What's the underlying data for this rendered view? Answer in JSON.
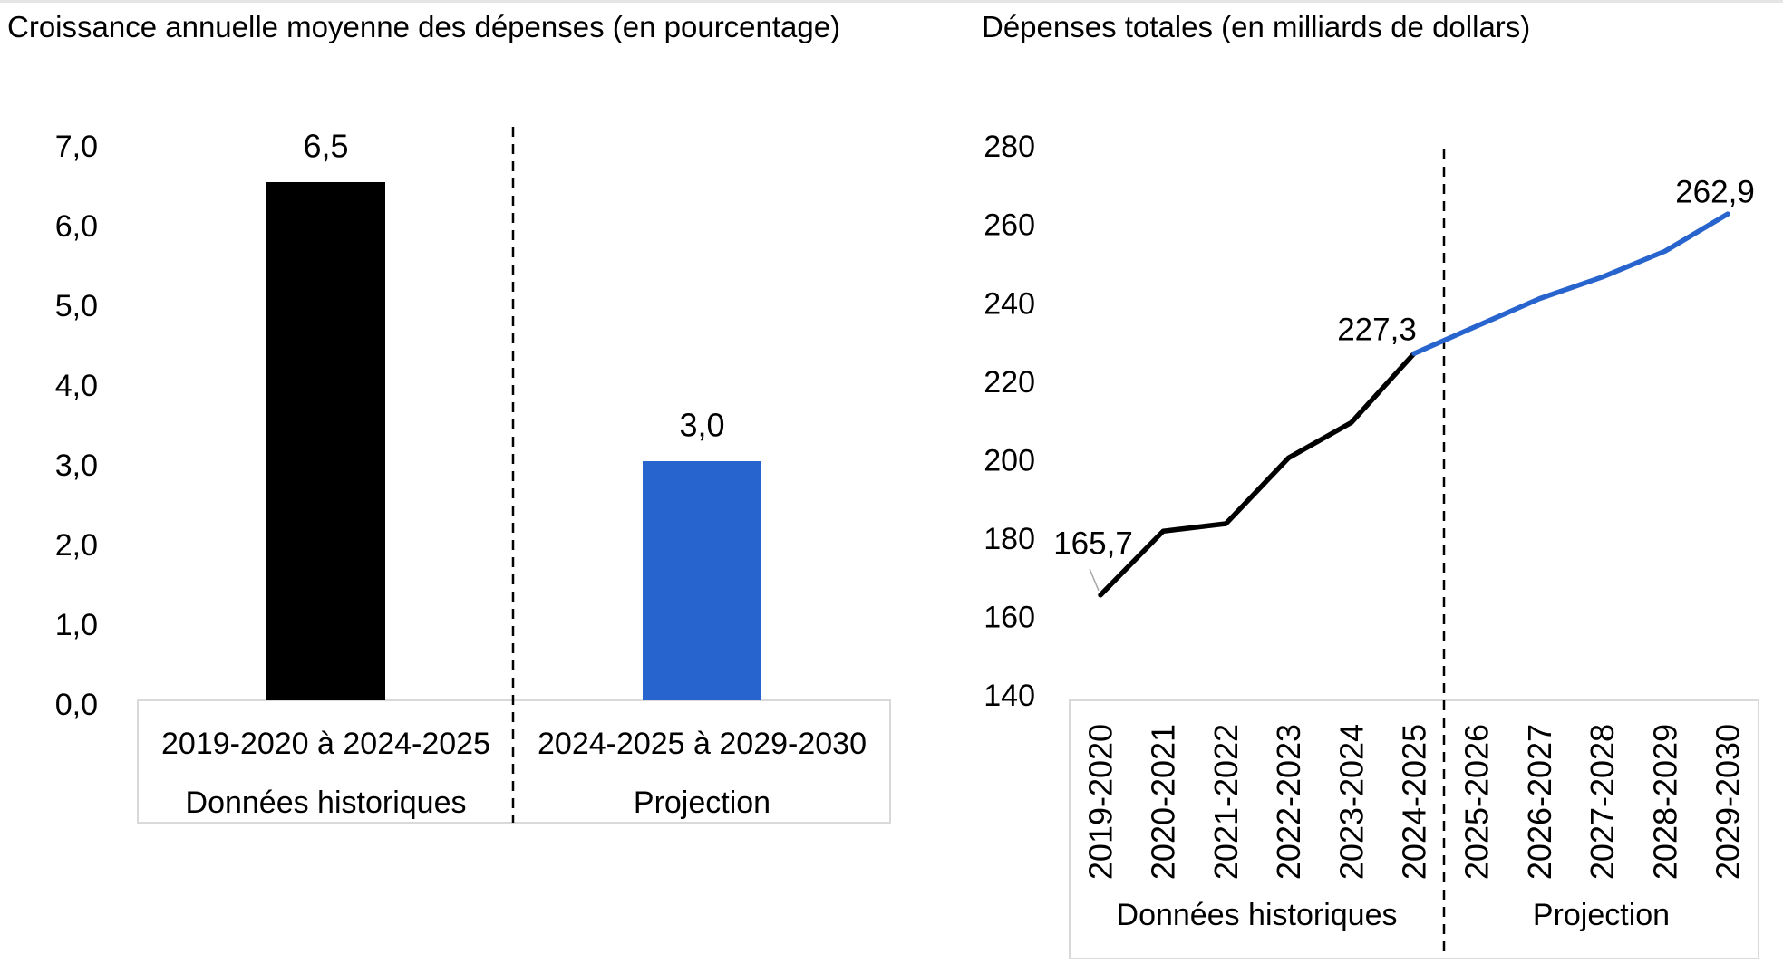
{
  "page": {
    "background": "#ffffff",
    "top_edge_color": "#e5e5e5"
  },
  "colors": {
    "historical": "#000000",
    "projection": "#2764cd",
    "box_border": "#d9d9d9",
    "leader_line": "#a6a6a6",
    "separator": "#000000",
    "text": "#000000"
  },
  "chart_data": [
    {
      "id": "average-growth-bar-chart",
      "type": "bar",
      "title": "Croissance annuelle moyenne des dépenses (en pourcentage)",
      "categories": [
        "2019-2020 à 2024-2025",
        "2024-2025 à 2029-2030"
      ],
      "group_labels": [
        "Données historiques",
        "Projection"
      ],
      "values": [
        6.5,
        3.0
      ],
      "value_labels": [
        "6,5",
        "3,0"
      ],
      "bar_colors": [
        "#000000",
        "#2764cd"
      ],
      "ylim": [
        0,
        7
      ],
      "ytick_step": 1,
      "ytick_labels": [
        "0,0",
        "1,0",
        "2,0",
        "3,0",
        "4,0",
        "5,0",
        "6,0",
        "7,0"
      ],
      "separator_after_category": "2019-2020 à 2024-2025",
      "grid": false,
      "legend": "none",
      "xlabel": "",
      "ylabel": ""
    },
    {
      "id": "total-spending-line-chart",
      "type": "line",
      "title": "Dépenses totales (en milliards de dollars)",
      "x": [
        "2019-2020",
        "2020-2021",
        "2021-2022",
        "2022-2023",
        "2023-2024",
        "2024-2025",
        "2025-2026",
        "2026-2027",
        "2027-2028",
        "2028-2029",
        "2029-2030"
      ],
      "series": [
        {
          "name": "Données historiques",
          "color": "#000000",
          "x_indices": [
            0,
            1,
            2,
            3,
            4,
            5
          ],
          "values": [
            165.7,
            182.0,
            183.9,
            200.7,
            209.7,
            227.3
          ]
        },
        {
          "name": "Projection",
          "color": "#2764cd",
          "x_indices": [
            5,
            6,
            7,
            8,
            9,
            10
          ],
          "values": [
            227.3,
            234.3,
            241.3,
            246.8,
            253.4,
            262.9
          ]
        }
      ],
      "point_labels": [
        {
          "text": "165,7",
          "x_index": 0,
          "value": 165.7,
          "has_leader": true
        },
        {
          "text": "227,3",
          "x_index": 5,
          "value": 227.3,
          "has_leader": false
        },
        {
          "text": "262,9",
          "x_index": 10,
          "value": 262.9,
          "has_leader": false
        }
      ],
      "ylim": [
        140,
        280
      ],
      "ytick_step": 20,
      "ytick_labels": [
        "140",
        "160",
        "180",
        "200",
        "220",
        "240",
        "260",
        "280"
      ],
      "group_labels": [
        "Données historiques",
        "Projection"
      ],
      "separator_between": [
        "2024-2025",
        "2025-2026"
      ],
      "grid": false,
      "legend": "none",
      "xlabel": "",
      "ylabel": ""
    }
  ]
}
